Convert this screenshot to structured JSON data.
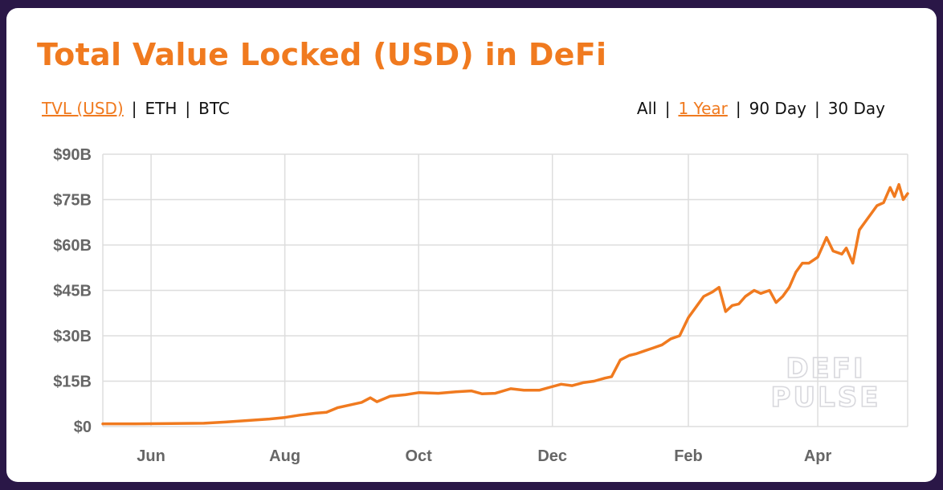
{
  "title": "Total Value Locked (USD) in DeFi",
  "metric_toggles": [
    {
      "label": "TVL (USD)",
      "active": true
    },
    {
      "label": "ETH",
      "active": false
    },
    {
      "label": "BTC",
      "active": false
    }
  ],
  "range_toggles": [
    {
      "label": "All",
      "active": false
    },
    {
      "label": "1 Year",
      "active": true
    },
    {
      "label": "90 Day",
      "active": false
    },
    {
      "label": "30 Day",
      "active": false
    }
  ],
  "separator": "|",
  "watermark": [
    "DEFI",
    "PULSE"
  ],
  "colors": {
    "line": "#f07a1f",
    "title": "#f07a1f",
    "grid": "#dddddd",
    "background": "#2a1747"
  },
  "chart_data": {
    "type": "line",
    "title": "Total Value Locked (USD) in DeFi",
    "xlabel": "",
    "ylabel": "",
    "ylim": [
      0,
      90
    ],
    "y_unit": "USD billions",
    "yticks": [
      0,
      15,
      30,
      45,
      60,
      75,
      90
    ],
    "ytick_labels": [
      "$0",
      "$15B",
      "$30B",
      "$45B",
      "$60B",
      "$75B",
      "$90B"
    ],
    "xlim": [
      "2020-05-10",
      "2021-05-12"
    ],
    "xticks": [
      "2020-06-01",
      "2020-08-01",
      "2020-10-01",
      "2020-12-01",
      "2021-02-01",
      "2021-04-01"
    ],
    "xtick_labels": [
      "Jun",
      "Aug",
      "Oct",
      "Dec",
      "Feb",
      "Apr"
    ],
    "grid": true,
    "series": [
      {
        "x": [
          "2020-05-10",
          "2020-05-25",
          "2020-06-10",
          "2020-06-25",
          "2020-07-05",
          "2020-07-15",
          "2020-07-25",
          "2020-08-01",
          "2020-08-08",
          "2020-08-15",
          "2020-08-20",
          "2020-08-25",
          "2020-08-30",
          "2020-09-05",
          "2020-09-09",
          "2020-09-12",
          "2020-09-18",
          "2020-09-25",
          "2020-10-01",
          "2020-10-10",
          "2020-10-18",
          "2020-10-25",
          "2020-10-30",
          "2020-11-05",
          "2020-11-12",
          "2020-11-18",
          "2020-11-25",
          "2020-11-30",
          "2020-12-05",
          "2020-12-10",
          "2020-12-15",
          "2020-12-20",
          "2020-12-25",
          "2020-12-28",
          "2021-01-01",
          "2021-01-05",
          "2021-01-08",
          "2021-01-12",
          "2021-01-16",
          "2021-01-20",
          "2021-01-24",
          "2021-01-28",
          "2021-02-01",
          "2021-02-05",
          "2021-02-08",
          "2021-02-12",
          "2021-02-15",
          "2021-02-18",
          "2021-02-21",
          "2021-02-24",
          "2021-02-27",
          "2021-03-03",
          "2021-03-06",
          "2021-03-10",
          "2021-03-13",
          "2021-03-16",
          "2021-03-19",
          "2021-03-22",
          "2021-03-25",
          "2021-03-28",
          "2021-04-01",
          "2021-04-05",
          "2021-04-08",
          "2021-04-12",
          "2021-04-14",
          "2021-04-17",
          "2021-04-20",
          "2021-04-23",
          "2021-04-26",
          "2021-04-28",
          "2021-05-01",
          "2021-05-04",
          "2021-05-06",
          "2021-05-08",
          "2021-05-10",
          "2021-05-12"
        ],
        "y": [
          0.9,
          0.9,
          1.0,
          1.1,
          1.5,
          2.0,
          2.5,
          3.0,
          3.8,
          4.4,
          4.7,
          6.2,
          7.0,
          8.0,
          9.5,
          8.2,
          10.0,
          10.5,
          11.2,
          11.0,
          11.5,
          11.8,
          10.8,
          11.0,
          12.5,
          12.0,
          12.0,
          13.0,
          14.0,
          13.5,
          14.5,
          15.0,
          16.0,
          16.5,
          22.0,
          23.5,
          24.0,
          25.0,
          26.0,
          27.0,
          29.0,
          30.0,
          36.0,
          40.0,
          43.0,
          44.5,
          46.0,
          38.0,
          40.0,
          40.5,
          43.0,
          45.0,
          44.0,
          45.0,
          41.0,
          43.0,
          46.0,
          51.0,
          54.0,
          54.0,
          56.0,
          62.5,
          58.0,
          57.0,
          59.0,
          54.0,
          65.0,
          68.0,
          71.0,
          73.0,
          74.0,
          79.0,
          76.0,
          80.0,
          75.0,
          77.0
        ]
      }
    ]
  }
}
